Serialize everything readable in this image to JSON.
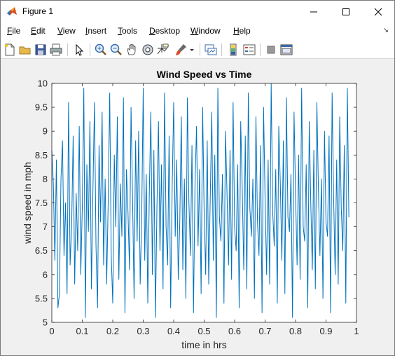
{
  "window": {
    "title": "Figure 1",
    "minimize_label": "Minimize",
    "maximize_label": "Maximize",
    "close_label": "Close"
  },
  "menu": {
    "items": [
      "File",
      "Edit",
      "View",
      "Insert",
      "Tools",
      "Desktop",
      "Window",
      "Help"
    ]
  },
  "toolbar": {
    "buttons": [
      "new-figure-icon",
      "open-file-icon",
      "save-icon",
      "print-icon",
      "edit-plot-arrow-icon",
      "zoom-in-icon",
      "zoom-out-icon",
      "pan-hand-icon",
      "rotate-3d-icon",
      "data-cursor-icon",
      "brush-icon",
      "brush-dropdown-icon",
      "link-plot-icon",
      "insert-colorbar-icon",
      "insert-legend-icon",
      "hide-plot-tools-icon",
      "show-plot-tools-icon"
    ]
  },
  "colors": {
    "line": "#0072bd",
    "axes_background": "#ffffff",
    "figure_background": "#f0f0f0"
  },
  "chart_data": {
    "type": "line",
    "title": "Wind Speed vs Time",
    "xlabel": "time in hrs",
    "ylabel": "wind speed in mph",
    "xlim": [
      0,
      1
    ],
    "ylim": [
      5,
      10
    ],
    "xticks": [
      "0",
      "0.1",
      "0.2",
      "0.3",
      "0.4",
      "0.5",
      "0.6",
      "0.7",
      "0.8",
      "0.9",
      "1"
    ],
    "yticks": [
      "5",
      "5.5",
      "6",
      "6.5",
      "7",
      "7.5",
      "8",
      "8.5",
      "9",
      "9.5",
      "10"
    ],
    "grid": false,
    "series": [
      {
        "x_start": 0,
        "x_step": 0.005,
        "values": [
          8.6,
          7.9,
          6.3,
          8.4,
          5.3,
          5.6,
          8.0,
          8.8,
          6.4,
          7.5,
          5.6,
          9.6,
          6.2,
          7.0,
          8.9,
          5.8,
          7.7,
          6.5,
          9.1,
          6.0,
          7.4,
          9.9,
          5.1,
          8.3,
          6.9,
          9.2,
          5.7,
          7.8,
          9.6,
          6.6,
          5.3,
          8.7,
          7.1,
          9.4,
          6.2,
          8.0,
          5.8,
          7.5,
          9.8,
          6.4,
          5.4,
          8.5,
          7.0,
          9.3,
          5.9,
          7.9,
          6.8,
          9.7,
          5.2,
          8.2,
          7.3,
          6.1,
          9.5,
          7.6,
          5.5,
          8.8,
          6.7,
          9.0,
          5.8,
          7.2,
          9.9,
          6.3,
          8.1,
          5.4,
          7.7,
          9.4,
          6.0,
          8.6,
          5.1,
          7.4,
          9.2,
          6.5,
          8.3,
          5.7,
          9.8,
          7.0,
          6.2,
          8.9,
          5.3,
          7.8,
          9.6,
          6.8,
          8.4,
          5.9,
          7.1,
          9.3,
          6.1,
          8.0,
          5.5,
          9.7,
          7.5,
          6.4,
          8.7,
          5.2,
          7.9,
          9.1,
          6.6,
          8.2,
          5.6,
          9.5,
          7.3,
          6.0,
          8.8,
          5.8,
          7.6,
          9.4,
          6.3,
          8.5,
          5.1,
          9.9,
          7.2,
          6.7,
          8.1,
          5.4,
          9.0,
          7.7,
          6.2,
          8.6,
          5.9,
          9.6,
          7.0,
          6.5,
          8.3,
          5.3,
          9.2,
          7.8,
          6.1,
          8.9,
          5.7,
          9.8,
          7.4,
          6.8,
          8.0,
          5.5,
          9.3,
          7.1,
          6.4,
          8.7,
          5.2,
          9.5,
          7.6,
          6.0,
          8.4,
          5.8,
          10.0,
          7.3,
          6.6,
          8.2,
          5.4,
          9.1,
          7.9,
          6.3,
          8.8,
          5.6,
          9.7,
          7.2,
          6.9,
          8.1,
          5.1,
          9.4,
          7.7,
          6.2,
          8.5,
          5.9,
          9.9,
          7.0,
          6.7,
          8.3,
          5.3,
          9.2,
          7.5,
          6.1,
          8.6,
          5.7,
          9.6,
          7.8,
          6.4,
          8.0,
          5.5,
          9.0,
          7.1,
          6.8,
          8.9,
          5.2,
          9.8,
          7.6,
          6.0,
          8.4,
          5.8,
          9.3,
          7.4,
          6.5,
          8.7,
          5.4,
          9.9,
          7.2
        ]
      }
    ]
  }
}
